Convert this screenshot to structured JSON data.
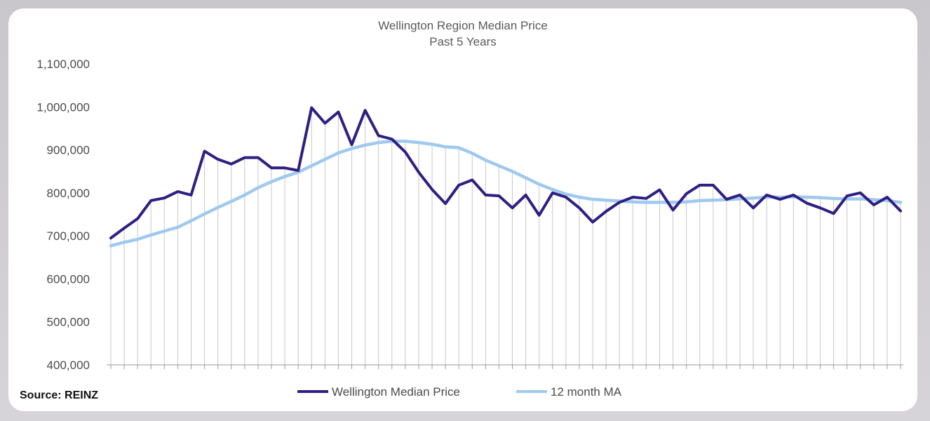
{
  "chart_data": {
    "type": "line",
    "title": "Wellington Region Median Price",
    "subtitle": "Past 5 Years",
    "source": "Source: REINZ",
    "ylim": [
      400000,
      1100000
    ],
    "yticks": [
      400000,
      500000,
      600000,
      700000,
      800000,
      900000,
      1000000,
      1100000
    ],
    "ytick_labels": [
      "400,000",
      "500,000",
      "600,000",
      "700,000",
      "800,000",
      "900,000",
      "1,000,000",
      "1,100,000"
    ],
    "grid": "vertical drop lines",
    "legend_position": "bottom",
    "series": [
      {
        "name": "Wellington Median Price",
        "color": "#2e1f82",
        "values": [
          695000,
          718000,
          740000,
          782000,
          788000,
          803000,
          795000,
          897000,
          878000,
          867000,
          882000,
          882000,
          858000,
          858000,
          852000,
          998000,
          962000,
          988000,
          912000,
          992000,
          933000,
          925000,
          895000,
          848000,
          808000,
          775000,
          818000,
          830000,
          795000,
          793000,
          765000,
          795000,
          748000,
          800000,
          790000,
          765000,
          732000,
          757000,
          778000,
          790000,
          787000,
          807000,
          760000,
          798000,
          818000,
          818000,
          785000,
          795000,
          765000,
          795000,
          785000,
          795000,
          776000,
          765000,
          752000,
          793000,
          800000,
          772000,
          790000,
          758000
        ]
      },
      {
        "name": "12 month MA",
        "color": "#9fc9ef",
        "values": [
          677000,
          685000,
          692000,
          702000,
          711000,
          720000,
          735000,
          751000,
          766000,
          780000,
          795000,
          812000,
          826000,
          838000,
          848000,
          863000,
          878000,
          893000,
          903000,
          911000,
          917000,
          920000,
          920000,
          917000,
          913000,
          907000,
          905000,
          892000,
          876000,
          863000,
          850000,
          835000,
          820000,
          808000,
          797000,
          790000,
          785000,
          783000,
          781000,
          779000,
          778000,
          778000,
          778000,
          779000,
          782000,
          783000,
          784000,
          786000,
          788000,
          790000,
          790000,
          791000,
          790000,
          789000,
          787000,
          786000,
          786000,
          784000,
          782000,
          778000
        ]
      }
    ]
  }
}
